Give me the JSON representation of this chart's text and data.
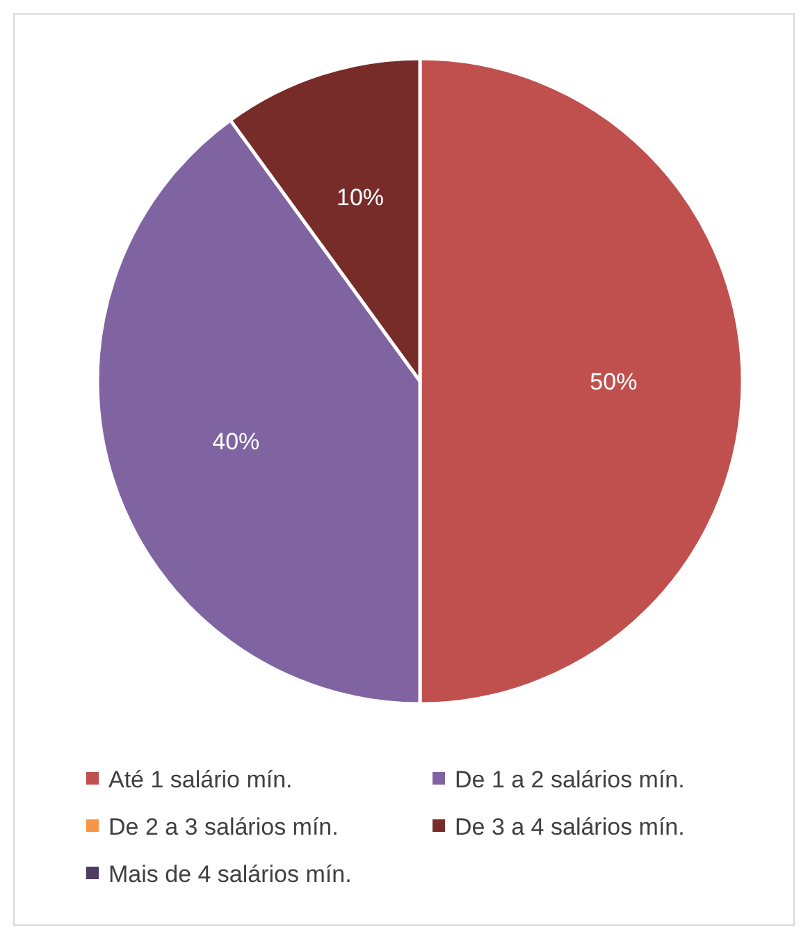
{
  "chart_data": {
    "type": "pie",
    "categories": [
      "Até 1 salário mín.",
      "De 1 a 2 salários mín.",
      "De 2 a 3 salários mín.",
      "De 3 a 4 salários mín.",
      "Mais de 4 salários mín."
    ],
    "values": [
      50,
      40,
      0,
      10,
      0
    ],
    "colors": [
      "#c0504d",
      "#8064a2",
      "#f79646",
      "#772c2a",
      "#4d3b62"
    ],
    "value_labels": [
      "50%",
      "40%",
      null,
      "10%",
      null
    ],
    "legend": "bottom"
  }
}
